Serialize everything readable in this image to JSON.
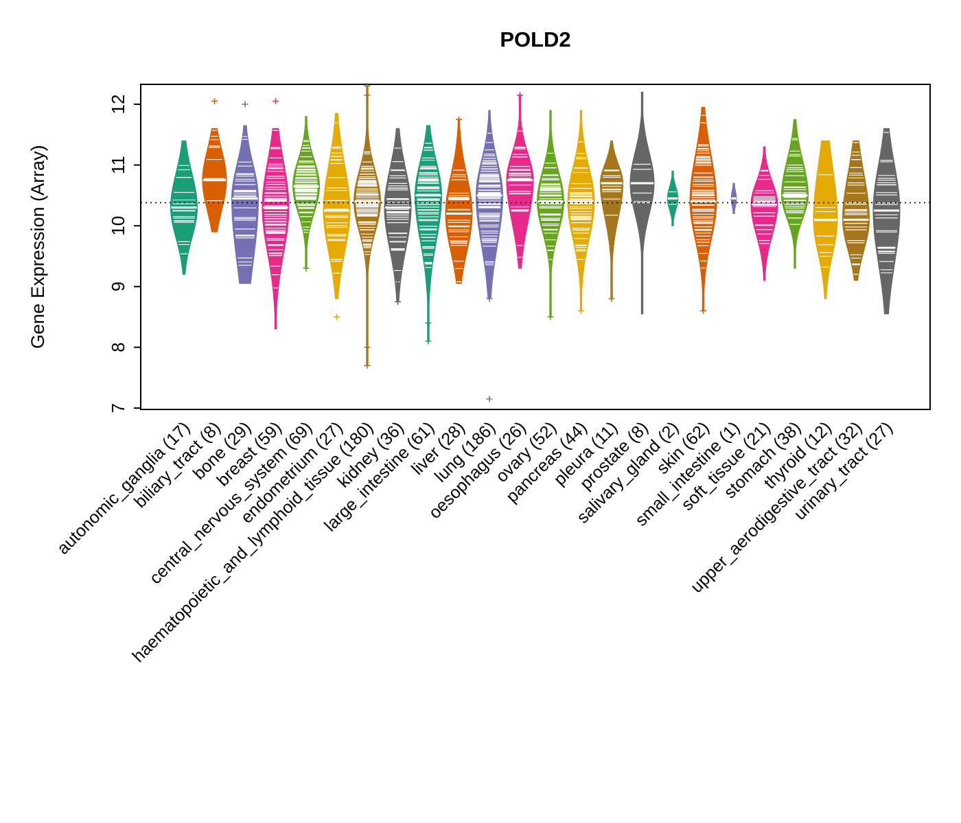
{
  "title": "POLD2",
  "ylabel": "Gene Expression (Array)",
  "chart_data": {
    "type": "violin",
    "title": "POLD2",
    "xlabel": "",
    "ylabel": "Gene Expression (Array)",
    "ylim": [
      7,
      12.35
    ],
    "yticks": [
      7,
      8,
      9,
      10,
      11,
      12
    ],
    "reference_line": 10.38,
    "grid": false,
    "palette": [
      "#1B9E77",
      "#D95F02",
      "#7570B3",
      "#E7298A",
      "#66A61E",
      "#E6AB02",
      "#A6761D",
      "#666666"
    ],
    "groups": [
      {
        "label": "autonomic_ganglia",
        "n": 17,
        "color": "#1B9E77",
        "median": 10.3,
        "q1": 9.9,
        "q3": 10.75,
        "min": 9.2,
        "max": 11.4,
        "outliers": []
      },
      {
        "label": "biliary_tract",
        "n": 8,
        "color": "#D95F02",
        "median": 10.75,
        "q1": 10.35,
        "q3": 11.15,
        "min": 9.9,
        "max": 11.6,
        "w": 0.9,
        "outliers": [
          12.05
        ]
      },
      {
        "label": "bone",
        "n": 29,
        "color": "#7570B3",
        "median": 10.45,
        "q1": 9.6,
        "q3": 10.9,
        "min": 9.05,
        "max": 11.65,
        "outliers": [
          12.0
        ]
      },
      {
        "label": "breast",
        "n": 59,
        "color": "#E7298A",
        "median": 10.3,
        "q1": 9.7,
        "q3": 10.9,
        "min": 8.3,
        "max": 11.6,
        "outliers": [
          12.05
        ]
      },
      {
        "label": "central_nervous_system",
        "n": 69,
        "color": "#66A61E",
        "median": 10.65,
        "q1": 10.3,
        "q3": 11.0,
        "min": 9.3,
        "max": 11.8,
        "outliers": [
          9.3
        ]
      },
      {
        "label": "endometrium",
        "n": 27,
        "color": "#E6AB02",
        "median": 10.25,
        "q1": 9.7,
        "q3": 10.85,
        "min": 8.8,
        "max": 11.85,
        "outliers": [
          8.5
        ]
      },
      {
        "label": "haematopoietic_and_lymphoid_tissue",
        "n": 180,
        "color": "#A6761D",
        "median": 10.4,
        "q1": 10.0,
        "q3": 10.8,
        "min": 7.7,
        "max": 12.3,
        "outliers": [
          12.3,
          12.15,
          8.0,
          7.7
        ]
      },
      {
        "label": "kidney",
        "n": 36,
        "color": "#666666",
        "median": 10.3,
        "q1": 9.75,
        "q3": 10.8,
        "min": 8.75,
        "max": 11.6,
        "outliers": [
          9.1,
          8.75
        ]
      },
      {
        "label": "large_intestine",
        "n": 61,
        "color": "#1B9E77",
        "median": 10.5,
        "q1": 9.9,
        "q3": 10.95,
        "min": 8.1,
        "max": 11.65,
        "outliers": [
          8.4,
          8.1
        ]
      },
      {
        "label": "liver",
        "n": 28,
        "color": "#D95F02",
        "median": 10.2,
        "q1": 9.7,
        "q3": 10.7,
        "min": 9.05,
        "max": 11.75,
        "outliers": [
          11.75
        ]
      },
      {
        "label": "lung",
        "n": 186,
        "color": "#7570B3",
        "median": 10.5,
        "q1": 9.85,
        "q3": 10.95,
        "min": 8.8,
        "max": 11.9,
        "outliers": [
          8.8,
          7.15
        ]
      },
      {
        "label": "oesophagus",
        "n": 26,
        "color": "#E7298A",
        "median": 10.75,
        "q1": 10.2,
        "q3": 11.1,
        "min": 9.3,
        "max": 12.15,
        "outliers": [
          12.15
        ]
      },
      {
        "label": "ovary",
        "n": 52,
        "color": "#66A61E",
        "median": 10.4,
        "q1": 10.0,
        "q3": 10.8,
        "min": 8.5,
        "max": 11.9,
        "outliers": [
          8.5
        ]
      },
      {
        "label": "pancreas",
        "n": 44,
        "color": "#E6AB02",
        "median": 10.4,
        "q1": 9.9,
        "q3": 10.85,
        "min": 8.6,
        "max": 11.9,
        "outliers": [
          8.6
        ]
      },
      {
        "label": "pleura",
        "n": 11,
        "color": "#A6761D",
        "median": 10.7,
        "q1": 10.25,
        "q3": 10.95,
        "min": 8.8,
        "max": 11.4,
        "w": 0.85,
        "outliers": [
          8.8
        ]
      },
      {
        "label": "prostate",
        "n": 8,
        "color": "#666666",
        "median": 10.7,
        "q1": 10.3,
        "q3": 11.1,
        "min": 8.55,
        "max": 12.2,
        "w": 0.9,
        "outliers": []
      },
      {
        "label": "salivary_gland",
        "n": 2,
        "color": "#1B9E77",
        "median": 10.45,
        "q1": 10.3,
        "q3": 10.6,
        "min": 10.0,
        "max": 10.9,
        "w": 0.4,
        "outliers": []
      },
      {
        "label": "skin",
        "n": 62,
        "color": "#D95F02",
        "median": 10.4,
        "q1": 9.9,
        "q3": 11.0,
        "min": 8.6,
        "max": 11.95,
        "outliers": [
          8.6
        ]
      },
      {
        "label": "small_intestine",
        "n": 1,
        "color": "#7570B3",
        "median": 10.45,
        "q1": 10.38,
        "q3": 10.52,
        "min": 10.2,
        "max": 10.7,
        "w": 0.2,
        "outliers": []
      },
      {
        "label": "soft_tissue",
        "n": 21,
        "color": "#E7298A",
        "median": 10.35,
        "q1": 9.95,
        "q3": 10.65,
        "min": 9.1,
        "max": 11.3,
        "outliers": []
      },
      {
        "label": "stomach",
        "n": 38,
        "color": "#66A61E",
        "median": 10.5,
        "q1": 10.2,
        "q3": 10.95,
        "min": 9.3,
        "max": 11.75,
        "outliers": []
      },
      {
        "label": "thyroid",
        "n": 12,
        "color": "#E6AB02",
        "median": 10.1,
        "q1": 9.65,
        "q3": 10.8,
        "min": 8.8,
        "max": 11.4,
        "w": 0.9,
        "outliers": []
      },
      {
        "label": "upper_aerodigestive_tract",
        "n": 32,
        "color": "#A6761D",
        "median": 10.1,
        "q1": 9.7,
        "q3": 10.7,
        "min": 9.1,
        "max": 11.4,
        "outliers": []
      },
      {
        "label": "urinary_tract",
        "n": 27,
        "color": "#666666",
        "median": 10.25,
        "q1": 9.55,
        "q3": 10.85,
        "min": 8.55,
        "max": 11.6,
        "outliers": []
      }
    ]
  }
}
